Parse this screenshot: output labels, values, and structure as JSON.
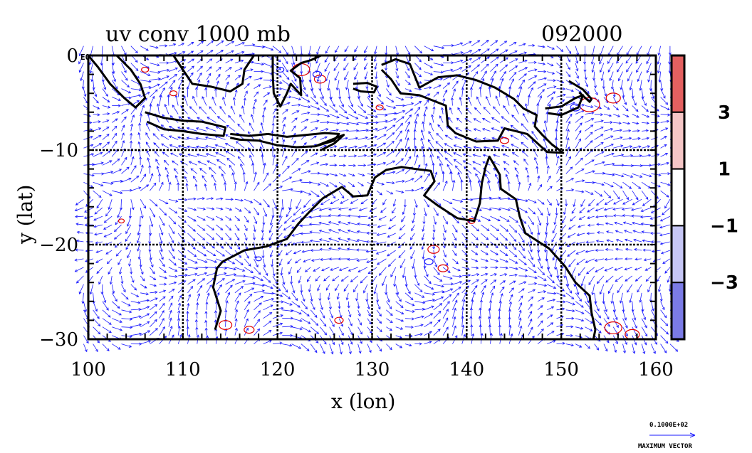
{
  "title": {
    "left": "uv conv 1000 mb",
    "right": "092000"
  },
  "axes": {
    "xlabel": "x (lon)",
    "ylabel": "y (lat)",
    "xlim": [
      100,
      160
    ],
    "ylim": [
      -30,
      0
    ],
    "xticks": [
      "100",
      "110",
      "120",
      "130",
      "140",
      "150",
      "160"
    ],
    "yticks": [
      "0",
      "−10",
      "−20",
      "−30"
    ],
    "exponent_label": "E0"
  },
  "colorbar": {
    "labels": [
      "3",
      "1",
      "−1",
      "−3"
    ],
    "segments": [
      {
        "color": "#e46060"
      },
      {
        "color": "#f5c6c6"
      },
      {
        "color": "#ffffff"
      },
      {
        "color": "#c6c6f5"
      },
      {
        "color": "#7b7be6"
      }
    ]
  },
  "reference_vector": {
    "value": "0.1000E+02",
    "label": "MAXIMUM VECTOR"
  },
  "colors": {
    "vector": "#1a1aff",
    "positive": "#e00000",
    "negative": "#1a1aff",
    "coast": "#000000"
  },
  "chart_data": {
    "type": "map",
    "title": "uv conv 1000 mb",
    "time": "092000",
    "xlabel": "x (lon)",
    "ylabel": "y (lat)",
    "xlim": [
      100,
      160
    ],
    "ylim": [
      -30,
      0
    ],
    "grid_lon": [
      110,
      120,
      130,
      140,
      150
    ],
    "grid_lat": [
      -10,
      -20
    ],
    "contour_levels": [
      -3,
      -1,
      1,
      3
    ],
    "coastlines": [
      {
        "name": "sumatra",
        "points": [
          [
            103,
            0
          ],
          [
            104.5,
            -1.5
          ],
          [
            105.5,
            -3
          ],
          [
            106,
            -4.5
          ],
          [
            105,
            -5.5
          ],
          [
            103.8,
            -4.5
          ],
          [
            102.3,
            -3
          ],
          [
            101,
            -1.2
          ],
          [
            100,
            0
          ]
        ]
      },
      {
        "name": "java",
        "points": [
          [
            106,
            -6
          ],
          [
            108,
            -6.6
          ],
          [
            110,
            -6.9
          ],
          [
            112,
            -7
          ],
          [
            114.5,
            -7.6
          ],
          [
            114.3,
            -8.5
          ],
          [
            112,
            -8.3
          ],
          [
            110,
            -8
          ],
          [
            108,
            -7.8
          ],
          [
            106.2,
            -7
          ]
        ]
      },
      {
        "name": "nusa",
        "points": [
          [
            115,
            -8.3
          ],
          [
            117,
            -8.5
          ],
          [
            119,
            -8.3
          ],
          [
            121,
            -8.6
          ],
          [
            123,
            -8.4
          ],
          [
            125,
            -8.2
          ],
          [
            126.5,
            -8.3
          ],
          [
            126,
            -9
          ],
          [
            124,
            -9.6
          ],
          [
            122,
            -9.7
          ],
          [
            120,
            -9.5
          ],
          [
            118,
            -9
          ],
          [
            116,
            -8.9
          ],
          [
            115,
            -8.7
          ]
        ]
      },
      {
        "name": "timor",
        "points": [
          [
            124,
            -9.6
          ],
          [
            125.5,
            -9
          ],
          [
            127,
            -8.4
          ],
          [
            126,
            -9.3
          ],
          [
            124.6,
            -10
          ]
        ]
      },
      {
        "name": "borneo",
        "points": [
          [
            109,
            0
          ],
          [
            110,
            -1.5
          ],
          [
            111,
            -3
          ],
          [
            113,
            -3.3
          ],
          [
            115,
            -3.8
          ],
          [
            116.3,
            -3
          ],
          [
            116.5,
            -1.5
          ],
          [
            117.5,
            0
          ]
        ]
      },
      {
        "name": "sulawesi",
        "points": [
          [
            119.5,
            0
          ],
          [
            119.5,
            -2
          ],
          [
            119.6,
            -4
          ],
          [
            120.3,
            -5.4
          ],
          [
            121,
            -4
          ],
          [
            121.4,
            -3
          ],
          [
            122.5,
            -4.2
          ],
          [
            122.4,
            -2.4
          ],
          [
            121.4,
            -1.6
          ],
          [
            122.5,
            -0.8
          ],
          [
            123.5,
            -0.5
          ],
          [
            124.6,
            0
          ]
        ]
      },
      {
        "name": "seram",
        "points": [
          [
            128,
            -3
          ],
          [
            129.5,
            -2.9
          ],
          [
            130.5,
            -3.3
          ],
          [
            130.2,
            -3.9
          ],
          [
            128.8,
            -3.8
          ],
          [
            128,
            -3.5
          ]
        ]
      },
      {
        "name": "new_guinea",
        "points": [
          [
            131,
            -1
          ],
          [
            132.5,
            -0.4
          ],
          [
            134,
            -0.9
          ],
          [
            135,
            -3.4
          ],
          [
            137,
            -2.3
          ],
          [
            139,
            -2.1
          ],
          [
            141,
            -2.6
          ],
          [
            143,
            -3.4
          ],
          [
            145,
            -4.6
          ],
          [
            146,
            -5.6
          ],
          [
            147.4,
            -6.3
          ],
          [
            147.2,
            -7.5
          ],
          [
            148,
            -8.4
          ],
          [
            149,
            -9.4
          ],
          [
            150.2,
            -10.3
          ],
          [
            148.5,
            -10.2
          ],
          [
            146.4,
            -8.3
          ],
          [
            144,
            -7.7
          ],
          [
            143.3,
            -9
          ],
          [
            141,
            -9.1
          ],
          [
            138.8,
            -8.2
          ],
          [
            138,
            -7.4
          ],
          [
            137.8,
            -5.3
          ],
          [
            135,
            -4.2
          ],
          [
            133,
            -4
          ],
          [
            132,
            -2.5
          ],
          [
            131,
            -1.5
          ]
        ]
      },
      {
        "name": "new_britain",
        "points": [
          [
            148.3,
            -5.6
          ],
          [
            150,
            -5.4
          ],
          [
            151.5,
            -4.5
          ],
          [
            152.3,
            -4.2
          ],
          [
            151.8,
            -5.5
          ],
          [
            150,
            -6.3
          ],
          [
            148.6,
            -6.1
          ]
        ]
      },
      {
        "name": "new_ireland",
        "points": [
          [
            150.8,
            -2.7
          ],
          [
            152.3,
            -3.6
          ],
          [
            153.2,
            -4.6
          ],
          [
            153,
            -4.9
          ],
          [
            151.9,
            -3.9
          ]
        ]
      },
      {
        "name": "australia",
        "points": [
          [
            113.4,
            -29
          ],
          [
            114,
            -27
          ],
          [
            113.2,
            -24.5
          ],
          [
            113.6,
            -22.5
          ],
          [
            114.2,
            -21.8
          ],
          [
            116.5,
            -20.6
          ],
          [
            118.8,
            -20.2
          ],
          [
            121,
            -19.4
          ],
          [
            122.2,
            -17.8
          ],
          [
            123.5,
            -16.4
          ],
          [
            124.8,
            -15.1
          ],
          [
            126.8,
            -13.9
          ],
          [
            128,
            -14.9
          ],
          [
            129.5,
            -14.8
          ],
          [
            130.3,
            -12.9
          ],
          [
            131.5,
            -12.1
          ],
          [
            133.1,
            -11.8
          ],
          [
            134.6,
            -12
          ],
          [
            136.2,
            -12.2
          ],
          [
            136.6,
            -13.3
          ],
          [
            135.5,
            -14.8
          ],
          [
            137,
            -15.9
          ],
          [
            139,
            -17.2
          ],
          [
            140.8,
            -17.5
          ],
          [
            141.4,
            -15.6
          ],
          [
            141.6,
            -13.5
          ],
          [
            142,
            -11.8
          ],
          [
            142.4,
            -10.7
          ],
          [
            143.5,
            -12.6
          ],
          [
            143.6,
            -14.1
          ],
          [
            145.2,
            -15.2
          ],
          [
            145.6,
            -17
          ],
          [
            146.2,
            -18.8
          ],
          [
            148.7,
            -20.4
          ],
          [
            150.4,
            -22.3
          ],
          [
            151.5,
            -24
          ],
          [
            153,
            -25.4
          ],
          [
            153.2,
            -27.2
          ],
          [
            153.6,
            -29
          ],
          [
            153.4,
            -30
          ]
        ]
      }
    ]
  }
}
